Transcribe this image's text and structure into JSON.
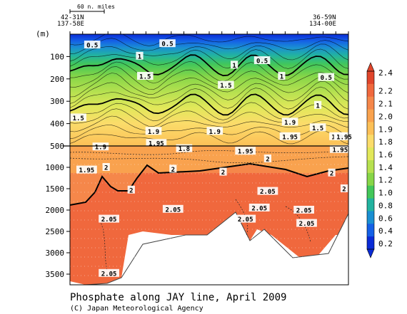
{
  "chart_data": {
    "type": "heatmap",
    "title": "Phosphate along JAY line, April 2009",
    "credit": "(C) Japan Meteorological Agency",
    "scale_bar_label": "60 n. miles",
    "start_station": {
      "lat": "42-31N",
      "lon": "137-58E"
    },
    "end_station": {
      "lat": "36-59N",
      "lon": "134-00E"
    },
    "ylabel": "(m)",
    "upper_panel": {
      "ylim": [
        0,
        500
      ],
      "yticks": [
        100,
        200,
        300,
        400,
        500
      ],
      "contour_interval": 0.1,
      "labeled_contours": [
        {
          "level": "0.5",
          "x": 0.08,
          "y": 48
        },
        {
          "level": "0.5",
          "x": 0.35,
          "y": 42
        },
        {
          "level": "0.5",
          "x": 0.69,
          "y": 118
        },
        {
          "level": "0.5",
          "x": 0.92,
          "y": 193
        },
        {
          "level": "1",
          "x": 0.25,
          "y": 98
        },
        {
          "level": "1",
          "x": 0.59,
          "y": 138
        },
        {
          "level": "1",
          "x": 0.76,
          "y": 188
        },
        {
          "level": "1",
          "x": 0.89,
          "y": 318
        },
        {
          "level": "1.5",
          "x": 0.27,
          "y": 188
        },
        {
          "level": "1.5",
          "x": 0.03,
          "y": 374
        },
        {
          "level": "1.5",
          "x": 0.56,
          "y": 228
        },
        {
          "level": "1.5",
          "x": 0.89,
          "y": 418
        },
        {
          "level": "1.9",
          "x": 0.3,
          "y": 434
        },
        {
          "level": "1.9",
          "x": 0.52,
          "y": 434
        },
        {
          "level": "1.9",
          "x": 0.79,
          "y": 393
        },
        {
          "level": "1.95",
          "x": 0.31,
          "y": 488
        },
        {
          "level": "1.95",
          "x": 0.79,
          "y": 458
        },
        {
          "level": "1.9",
          "x": 0.96,
          "y": 458
        },
        {
          "level": "1.95",
          "x": 0.99,
          "y": 458
        }
      ]
    },
    "lower_panel": {
      "ylim": [
        500,
        3750
      ],
      "yticks": [
        1000,
        1500,
        2000,
        2500,
        3000,
        3500
      ],
      "labeled_contours": [
        {
          "level": "1.9",
          "x": 0.11,
          "y": 520
        },
        {
          "level": "1.8",
          "x": 0.41,
          "y": 560
        },
        {
          "level": "1.95",
          "x": 0.63,
          "y": 620
        },
        {
          "level": "1.95",
          "x": 0.97,
          "y": 580
        },
        {
          "level": "1.95",
          "x": 0.06,
          "y": 1060
        },
        {
          "level": "2",
          "x": 0.13,
          "y": 1000
        },
        {
          "level": "2",
          "x": 0.37,
          "y": 1040
        },
        {
          "level": "2",
          "x": 0.71,
          "y": 800
        },
        {
          "level": "2",
          "x": 0.94,
          "y": 1130
        },
        {
          "level": "2",
          "x": 0.22,
          "y": 1530
        },
        {
          "level": "2",
          "x": 0.55,
          "y": 1110
        },
        {
          "level": "2.05",
          "x": 0.71,
          "y": 1560
        },
        {
          "level": "2.05",
          "x": 0.37,
          "y": 1980
        },
        {
          "level": "2.05",
          "x": 0.14,
          "y": 2210
        },
        {
          "level": "2.05",
          "x": 0.63,
          "y": 2210
        },
        {
          "level": "2.05",
          "x": 0.68,
          "y": 1950
        },
        {
          "level": "2.05",
          "x": 0.84,
          "y": 2000
        },
        {
          "level": "2.05",
          "x": 0.85,
          "y": 2310
        },
        {
          "level": "2.05",
          "x": 0.14,
          "y": 3480
        },
        {
          "level": "2",
          "x": 1.0,
          "y": 1500
        }
      ]
    },
    "colorbar": {
      "labels": [
        "2.4",
        "2.2",
        "2.1",
        "2.0",
        "1.9",
        "1.8",
        "1.6",
        "1.4",
        "1.2",
        "1.0",
        "0.8",
        "0.6",
        "0.4",
        "0.2"
      ],
      "colors": [
        "#e0452b",
        "#f0683d",
        "#f5874a",
        "#f9a24e",
        "#fcc057",
        "#fbdc6a",
        "#e2e85a",
        "#b7e150",
        "#87d648",
        "#43c75a",
        "#22b3a0",
        "#1a8fd2",
        "#1460e6",
        "#0a2bd6"
      ]
    }
  }
}
